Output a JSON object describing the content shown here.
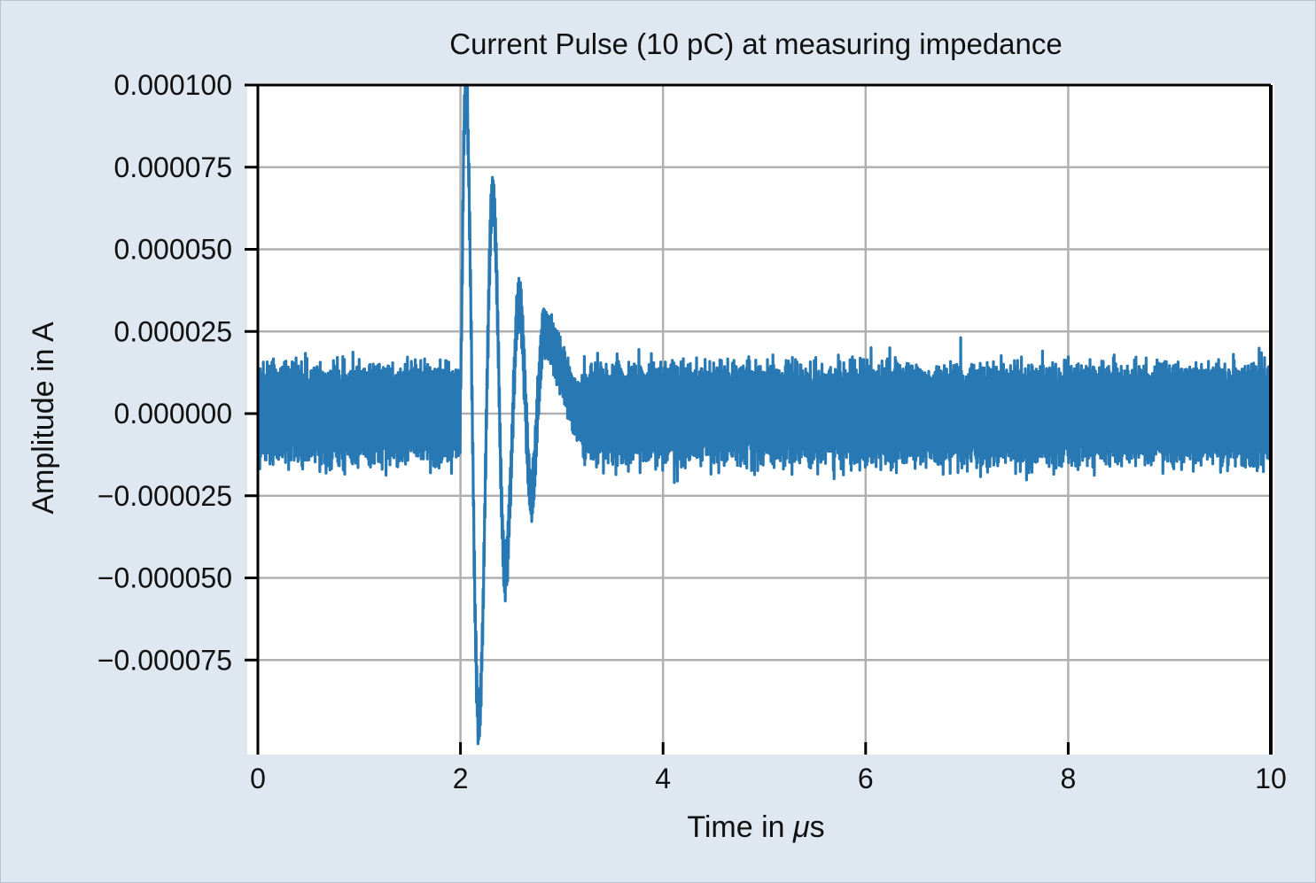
{
  "colors": {
    "background": "#dfe7f1",
    "plot_bg": "#ffffff",
    "signal": "#2878b4",
    "grid": "#b0b0b0",
    "axis": "#000000"
  },
  "chart_data": {
    "type": "line",
    "title": "Current Pulse (10 pC) at measuring impedance",
    "xlabel_prefix": "Time in ",
    "xlabel_unit_symbol": "μ",
    "xlabel_unit_suffix": "s",
    "ylabel": "Amplitude in A",
    "xlim": [
      0,
      10
    ],
    "ylim": [
      -0.0001,
      0.0001
    ],
    "x_ticks": [
      0,
      2,
      4,
      6,
      8,
      10
    ],
    "x_tick_labels": [
      "0",
      "2",
      "4",
      "6",
      "8",
      "10"
    ],
    "y_ticks": [
      0.0001,
      7.5e-05,
      5e-05,
      2.5e-05,
      0,
      -2.5e-05,
      -5e-05,
      -7.5e-05
    ],
    "y_tick_labels": [
      "0.000100",
      "0.000075",
      "0.000050",
      "0.000025",
      "0.000000",
      "−0.000025",
      "−0.000050",
      "−0.000075"
    ],
    "grid": true,
    "noise_amplitude": 1.35e-05,
    "pulse": {
      "start_time": 2.0,
      "duration": 1.2,
      "peaks": [
        {
          "t": 2.05,
          "value": 0.0001
        },
        {
          "t": 2.18,
          "value": -9.3e-05
        },
        {
          "t": 2.32,
          "value": 6.6e-05
        },
        {
          "t": 2.44,
          "value": -4.8e-05
        },
        {
          "t": 2.58,
          "value": 3.4e-05
        },
        {
          "t": 2.7,
          "value": -2.5e-05
        },
        {
          "t": 2.82,
          "value": 2.4e-05
        }
      ]
    },
    "series": [
      {
        "values_note_hidden": ""
      }
    ]
  }
}
